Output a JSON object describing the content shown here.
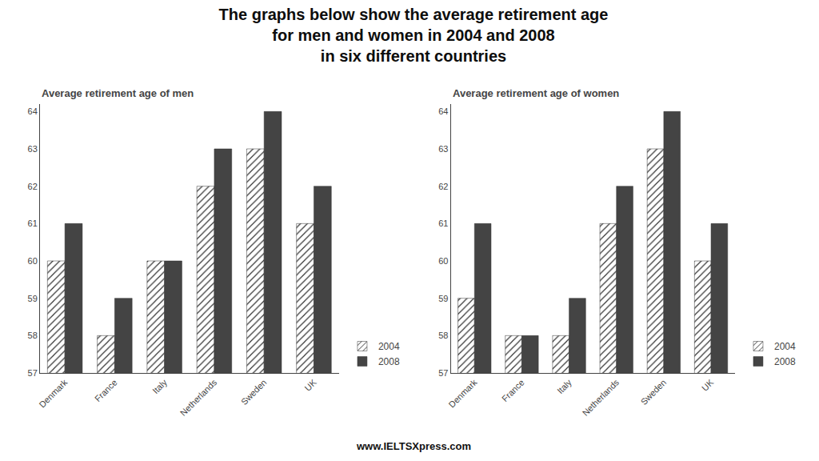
{
  "title": "The graphs below show the average retirement age\nfor men and women in 2004 and 2008\nin six different countries",
  "annotations": [
    "www.IELTSXpress.com"
  ],
  "chart_data": [
    {
      "type": "bar",
      "title": "Average retirement age of men",
      "categories": [
        "Denmark",
        "France",
        "Italy",
        "Netherlands",
        "Sweden",
        "UK"
      ],
      "series": [
        {
          "name": "2004",
          "color": "#aaaaaa",
          "values": [
            60,
            58,
            60,
            62,
            63,
            61
          ]
        },
        {
          "name": "2008",
          "color": "#444444",
          "values": [
            61,
            59,
            60,
            63,
            64,
            62
          ]
        }
      ],
      "ylim": [
        57,
        64.2
      ],
      "yticks": [
        57,
        58,
        59,
        60,
        61,
        62,
        63,
        64
      ],
      "grid": false,
      "legend": "lower right"
    },
    {
      "type": "bar",
      "title": "Average retirement age of women",
      "categories": [
        "Denmark",
        "France",
        "Italy",
        "Netherlands",
        "Sweden",
        "UK"
      ],
      "series": [
        {
          "name": "2004",
          "color": "#aaaaaa",
          "values": [
            59,
            58,
            58,
            61,
            63,
            60
          ]
        },
        {
          "name": "2008",
          "color": "#444444",
          "values": [
            61,
            58,
            59,
            62,
            64,
            61
          ]
        }
      ],
      "ylim": [
        57,
        64.2
      ],
      "yticks": [
        57,
        58,
        59,
        60,
        61,
        62,
        63,
        64
      ],
      "grid": false,
      "legend": "lower right"
    }
  ]
}
